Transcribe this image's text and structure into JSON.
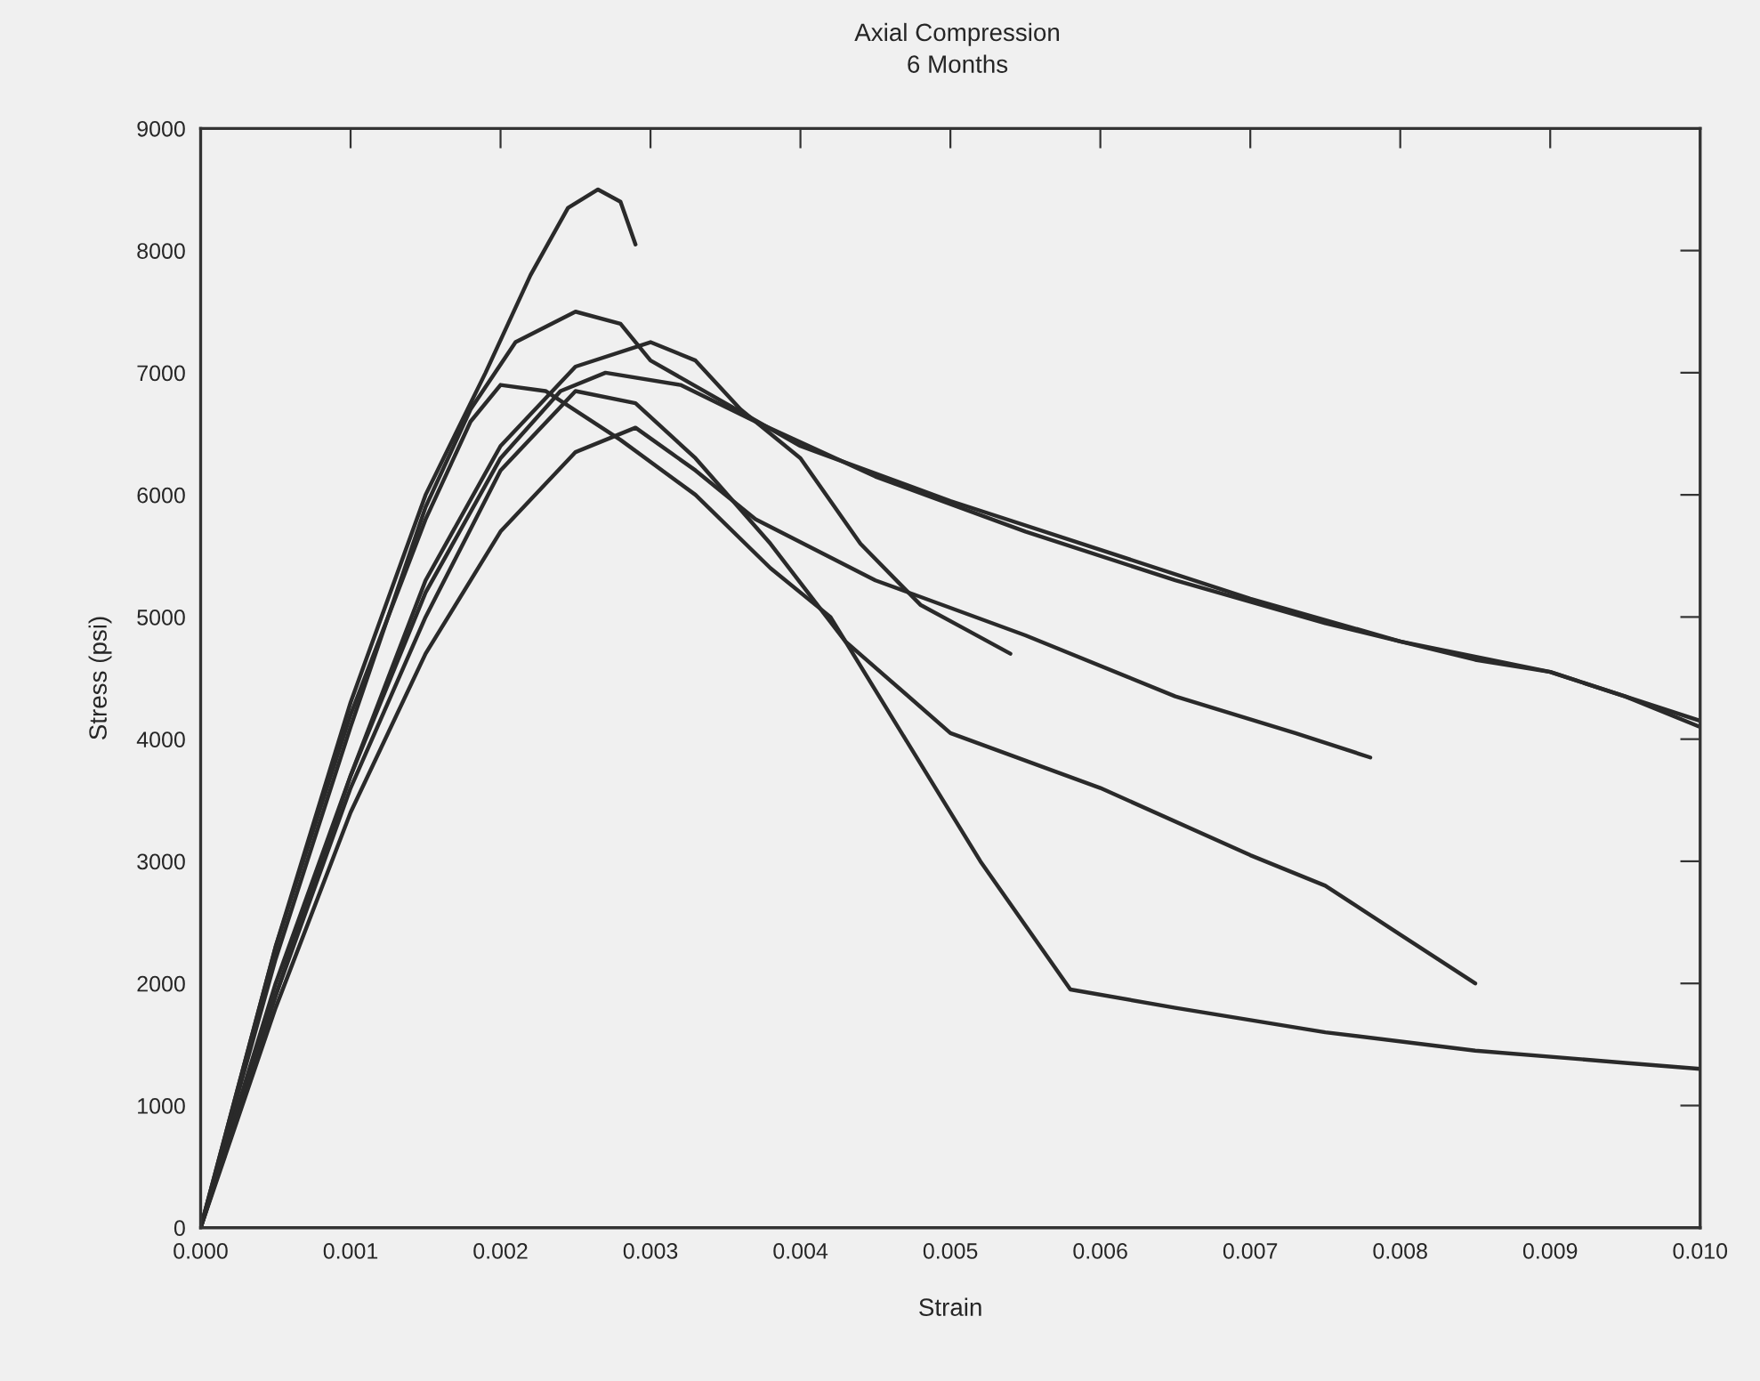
{
  "chart_data": {
    "type": "line",
    "title": "Axial Compression",
    "subtitle": "6 Months",
    "xlabel": "Strain",
    "ylabel": "Stress (psi)",
    "xlim": [
      0,
      0.01
    ],
    "xticks": [
      {
        "value": 0,
        "label": "0.000"
      },
      {
        "value": 0.001,
        "label": "0.001"
      },
      {
        "value": 0.002,
        "label": "0.002"
      },
      {
        "value": 0.003,
        "label": "0.003"
      },
      {
        "value": 0.004,
        "label": "0.004"
      },
      {
        "value": 0.005,
        "label": "0.005"
      },
      {
        "value": 0.006,
        "label": "0.006"
      },
      {
        "value": 0.007,
        "label": "0.007"
      },
      {
        "value": 0.008,
        "label": "0.008"
      },
      {
        "value": 0.009,
        "label": "0.009"
      },
      {
        "value": 0.01,
        "label": "0.010"
      }
    ],
    "ylim": [
      0,
      9000
    ],
    "yticks": [
      0,
      1000,
      2000,
      3000,
      4000,
      5000,
      6000,
      7000,
      8000,
      9000
    ],
    "grid": false,
    "marker": "none",
    "line_style": "solid",
    "series": [
      {
        "color": "#2a2a2a",
        "x": [
          0,
          0.0005,
          0.001,
          0.0015,
          0.0019,
          0.0022,
          0.00245,
          0.00265,
          0.0028,
          0.0029
        ],
        "values": [
          0,
          2300,
          4300,
          6000,
          7000,
          7800,
          8350,
          8500,
          8400,
          8050
        ]
      },
      {
        "color": "#2a2a2a",
        "x": [
          0,
          0.0005,
          0.001,
          0.0015,
          0.0018,
          0.0021,
          0.0025,
          0.0028,
          0.003,
          0.0035,
          0.004,
          0.005,
          0.006,
          0.007,
          0.008,
          0.0086,
          0.009,
          0.0095,
          0.01
        ],
        "values": [
          0,
          2200,
          4100,
          5900,
          6700,
          7250,
          7500,
          7400,
          7100,
          6750,
          6400,
          5950,
          5550,
          5150,
          4800,
          4650,
          4550,
          4350,
          4100
        ]
      },
      {
        "color": "#2a2a2a",
        "x": [
          0,
          0.0005,
          0.001,
          0.0015,
          0.002,
          0.0025,
          0.003,
          0.0033,
          0.0036,
          0.004,
          0.0044,
          0.0048,
          0.0051,
          0.0054
        ],
        "values": [
          0,
          1900,
          3700,
          5300,
          6400,
          7050,
          7250,
          7100,
          6700,
          6300,
          5600,
          5100,
          4900,
          4700
        ]
      },
      {
        "color": "#2a2a2a",
        "x": [
          0,
          0.0005,
          0.001,
          0.0015,
          0.002,
          0.0024,
          0.0027,
          0.0032,
          0.0037,
          0.0045,
          0.0055,
          0.0065,
          0.0075,
          0.0085,
          0.009,
          0.01
        ],
        "values": [
          0,
          2000,
          3700,
          5200,
          6300,
          6850,
          7000,
          6900,
          6600,
          6150,
          5700,
          5300,
          4950,
          4650,
          4550,
          4150
        ]
      },
      {
        "color": "#2a2a2a",
        "x": [
          0,
          0.0005,
          0.001,
          0.0015,
          0.0018,
          0.002,
          0.0023,
          0.0028,
          0.0033,
          0.0038,
          0.0042,
          0.0047,
          0.0052,
          0.0058,
          0.0065,
          0.0075,
          0.0085,
          0.0095,
          0.01
        ],
        "values": [
          0,
          2300,
          4200,
          5800,
          6600,
          6900,
          6850,
          6450,
          6000,
          5400,
          5000,
          4000,
          3000,
          1950,
          1800,
          1600,
          1450,
          1350,
          1300
        ]
      },
      {
        "color": "#2a2a2a",
        "x": [
          0,
          0.0005,
          0.001,
          0.0015,
          0.002,
          0.0025,
          0.0029,
          0.0033,
          0.0038,
          0.0043,
          0.005,
          0.006,
          0.007,
          0.0075,
          0.008,
          0.0085
        ],
        "values": [
          0,
          1900,
          3600,
          5000,
          6200,
          6850,
          6750,
          6300,
          5600,
          4800,
          4050,
          3600,
          3050,
          2800,
          2400,
          2000
        ]
      },
      {
        "color": "#2a2a2a",
        "x": [
          0,
          0.0005,
          0.001,
          0.0015,
          0.002,
          0.0025,
          0.0029,
          0.0033,
          0.0037,
          0.0045,
          0.0055,
          0.0065,
          0.0073,
          0.0078
        ],
        "values": [
          0,
          1800,
          3400,
          4700,
          5700,
          6350,
          6550,
          6200,
          5800,
          5300,
          4850,
          4350,
          4050,
          3850
        ]
      }
    ]
  }
}
